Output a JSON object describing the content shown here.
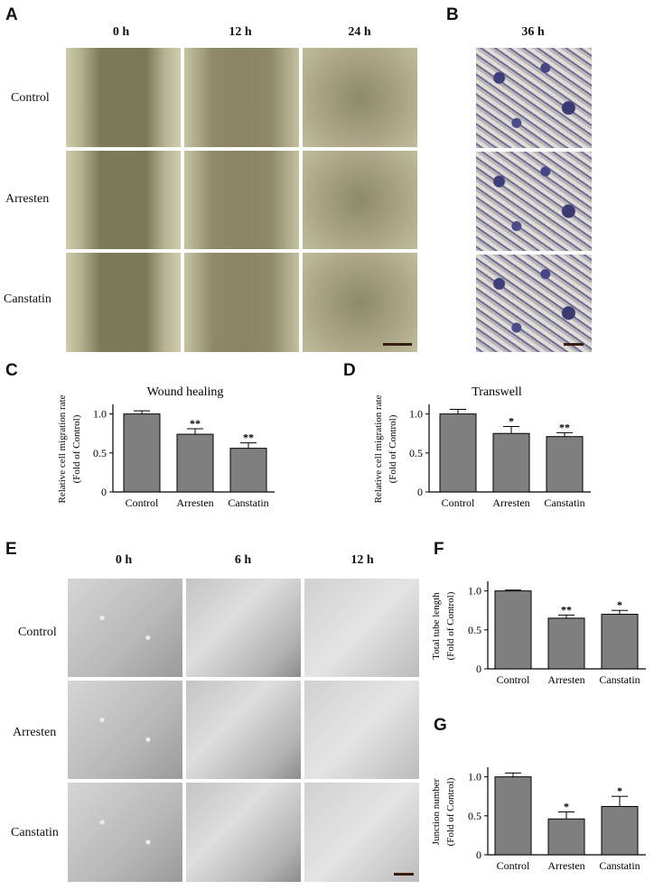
{
  "panels": {
    "A": {
      "letter": "A",
      "columns": [
        "0 h",
        "12 h",
        "24 h"
      ],
      "rows": [
        "Control",
        "Arresten",
        "Canstatin"
      ]
    },
    "B": {
      "letter": "B",
      "column": "36 h"
    },
    "C": {
      "letter": "C"
    },
    "D": {
      "letter": "D"
    },
    "E": {
      "letter": "E",
      "columns": [
        "0 h",
        "6 h",
        "12 h"
      ],
      "rows": [
        "Control",
        "Arresten",
        "Canstatin"
      ]
    },
    "F": {
      "letter": "F"
    },
    "G": {
      "letter": "G"
    }
  },
  "chart_data": [
    {
      "id": "C",
      "type": "bar",
      "title": "Wound healing",
      "ylabel_lines": [
        "Relative cell migration rate",
        "(Fold of Control)"
      ],
      "categories": [
        "Control",
        "Arresten",
        "Canstatin"
      ],
      "values": [
        1.0,
        0.74,
        0.56
      ],
      "errors": [
        0.04,
        0.07,
        0.07
      ],
      "significance": [
        "",
        "**",
        "**"
      ],
      "ylim": [
        0,
        1.1
      ],
      "yticks": [
        "0",
        "0.5",
        "1.0"
      ],
      "bar_color": "#7f7f7f"
    },
    {
      "id": "D",
      "type": "bar",
      "title": "Transwell",
      "ylabel_lines": [
        "Relative cell migration rate",
        "(Fold of Control)"
      ],
      "categories": [
        "Control",
        "Arresten",
        "Canstatin"
      ],
      "values": [
        1.0,
        0.75,
        0.71
      ],
      "errors": [
        0.06,
        0.09,
        0.05
      ],
      "significance": [
        "",
        "*",
        "**"
      ],
      "ylim": [
        0,
        1.1
      ],
      "yticks": [
        "0",
        "0.5",
        "1.0"
      ],
      "bar_color": "#7f7f7f"
    },
    {
      "id": "F",
      "type": "bar",
      "title": "",
      "ylabel_lines": [
        "Total tube length",
        "(Fold of Control)"
      ],
      "categories": [
        "Control",
        "Arresten",
        "Canstatin"
      ],
      "values": [
        1.0,
        0.65,
        0.7
      ],
      "errors": [
        0.01,
        0.04,
        0.05
      ],
      "significance": [
        "",
        "**",
        "*"
      ],
      "ylim": [
        0,
        1.1
      ],
      "yticks": [
        "0",
        "0.5",
        "1.0"
      ],
      "bar_color": "#7f7f7f"
    },
    {
      "id": "G",
      "type": "bar",
      "title": "",
      "ylabel_lines": [
        "Junction number",
        "(Fold of Control)"
      ],
      "categories": [
        "Control",
        "Arresten",
        "Canstatin"
      ],
      "values": [
        1.0,
        0.46,
        0.62
      ],
      "errors": [
        0.05,
        0.09,
        0.13
      ],
      "significance": [
        "",
        "*",
        "*"
      ],
      "ylim": [
        0,
        1.1
      ],
      "yticks": [
        "0",
        "0.5",
        "1.0"
      ],
      "bar_color": "#7f7f7f"
    }
  ]
}
